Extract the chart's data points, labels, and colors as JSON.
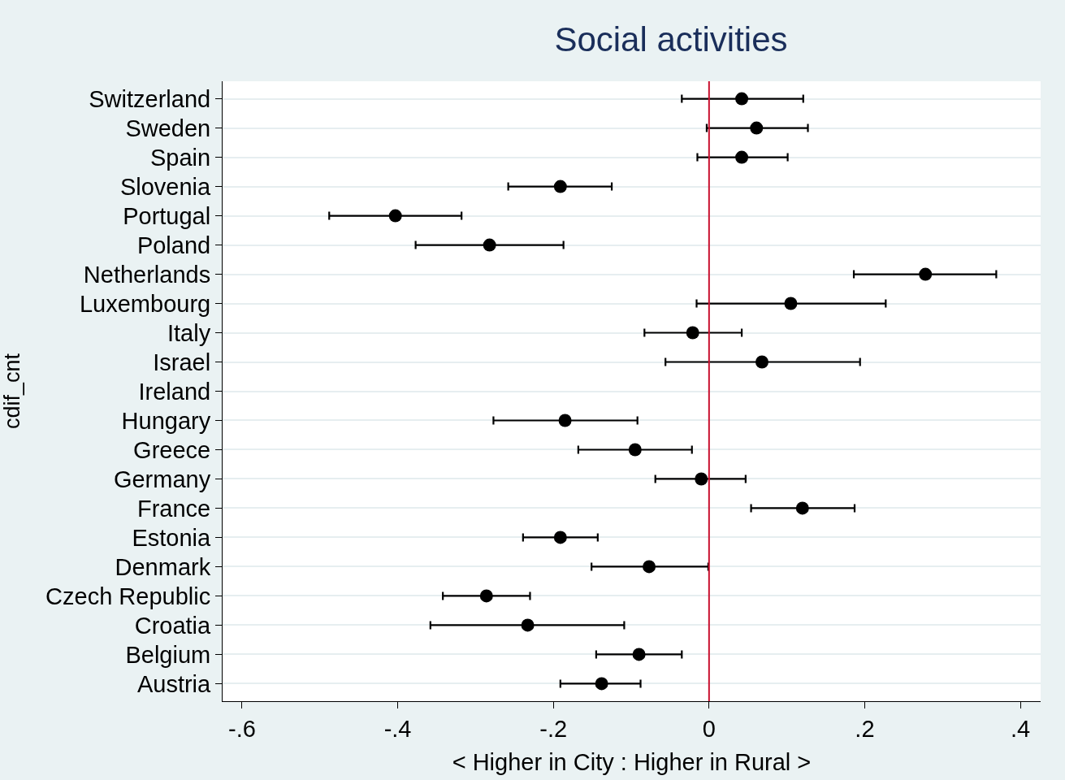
{
  "chart_data": {
    "type": "scatter",
    "title": "Social activities",
    "xlabel": "< Higher in City : Higher in Rural >",
    "ylabel": "cdif_cnt",
    "orientation": "horizontal",
    "categories": [
      "Switzerland",
      "Sweden",
      "Spain",
      "Slovenia",
      "Portugal",
      "Poland",
      "Netherlands",
      "Luxembourg",
      "Italy",
      "Israel",
      "Ireland",
      "Hungary",
      "Greece",
      "Germany",
      "France",
      "Estonia",
      "Denmark",
      "Czech Republic",
      "Croatia",
      "Belgium",
      "Austria"
    ],
    "series": [
      {
        "color": "#000000",
        "values": [
          0.042,
          0.061,
          0.042,
          -0.191,
          -0.403,
          -0.282,
          0.278,
          0.105,
          -0.021,
          0.068,
          null,
          -0.185,
          -0.095,
          -0.01,
          0.12,
          -0.191,
          -0.077,
          -0.286,
          -0.233,
          -0.09,
          -0.138
        ],
        "errors": [
          [
            -0.035,
            0.121
          ],
          [
            -0.003,
            0.127
          ],
          [
            -0.015,
            0.101
          ],
          [
            -0.258,
            -0.125
          ],
          [
            -0.488,
            -0.318
          ],
          [
            -0.377,
            -0.187
          ],
          [
            0.186,
            0.369
          ],
          [
            -0.016,
            0.227
          ],
          [
            -0.083,
            0.042
          ],
          [
            -0.056,
            0.194
          ],
          null,
          [
            -0.277,
            -0.092
          ],
          [
            -0.168,
            -0.022
          ],
          [
            -0.069,
            0.047
          ],
          [
            0.054,
            0.187
          ],
          [
            -0.239,
            -0.143
          ],
          [
            -0.151,
            -0.001
          ],
          [
            -0.342,
            -0.23
          ],
          [
            -0.358,
            -0.109
          ],
          [
            -0.145,
            -0.035
          ],
          [
            -0.191,
            -0.088
          ]
        ]
      }
    ],
    "xlim": [
      -0.625,
      0.426
    ],
    "xticks": [
      {
        "value": -0.6,
        "label": "-.6"
      },
      {
        "value": -0.4,
        "label": "-.4"
      },
      {
        "value": -0.2,
        "label": "-.2"
      },
      0,
      {
        "value": 0.2,
        "label": ".2"
      },
      {
        "value": 0.4,
        "label": ".4"
      }
    ],
    "ref_lines": [
      {
        "axis": "x",
        "value": 0,
        "color": "#c8102e"
      }
    ],
    "grid": "y",
    "marker": "circle",
    "legend": false
  }
}
